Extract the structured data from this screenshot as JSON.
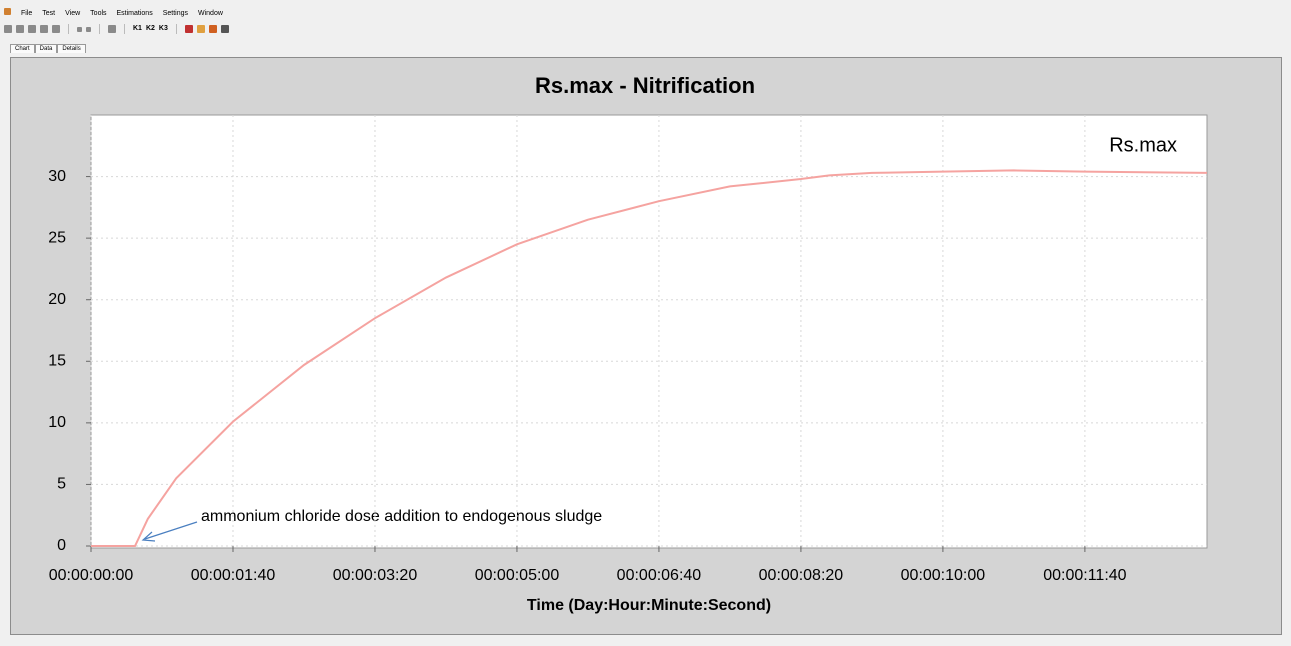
{
  "menu": [
    "File",
    "Test",
    "View",
    "Tools",
    "Estimations",
    "Settings",
    "Window"
  ],
  "toolbar": [
    "K1",
    "K2",
    "K3"
  ],
  "tabs": [
    "Chart",
    "Data",
    "Details"
  ],
  "chart_data": {
    "type": "line",
    "title": "Rs.max - Nitrification",
    "x_label": "Time (Day:Hour:Minute:Second)",
    "x": [
      0,
      31,
      40,
      60,
      100,
      150,
      200,
      250,
      300,
      350,
      400,
      450,
      500,
      520,
      550,
      600,
      650,
      700,
      786
    ],
    "series": [
      {
        "name": "Rs.max",
        "color": "#f5a3a0",
        "values": [
          0,
          0,
          2.2,
          5.5,
          10.1,
          14.7,
          18.5,
          21.8,
          24.5,
          26.5,
          28,
          29.2,
          29.8,
          30.1,
          30.3,
          30.4,
          30.5,
          30.4,
          30.3
        ]
      }
    ],
    "xlim": [
      0,
      786
    ],
    "xticks": [
      {
        "value": 0,
        "label": "00:00:00:00"
      },
      {
        "value": 100,
        "label": "00:00:01:40"
      },
      {
        "value": 200,
        "label": "00:00:03:20"
      },
      {
        "value": 300,
        "label": "00:00:05:00"
      },
      {
        "value": 400,
        "label": "00:00:06:40"
      },
      {
        "value": 500,
        "label": "00:00:08:20"
      },
      {
        "value": 600,
        "label": "00:00:10:00"
      },
      {
        "value": 700,
        "label": "00:00:11:40"
      }
    ],
    "ylim": [
      0,
      35
    ],
    "yticks": [
      0,
      5,
      10,
      15,
      20,
      25,
      30
    ],
    "grid": true,
    "legend": "top-right",
    "annotation": "ammonium chloride dose addition to endogenous sludge"
  }
}
